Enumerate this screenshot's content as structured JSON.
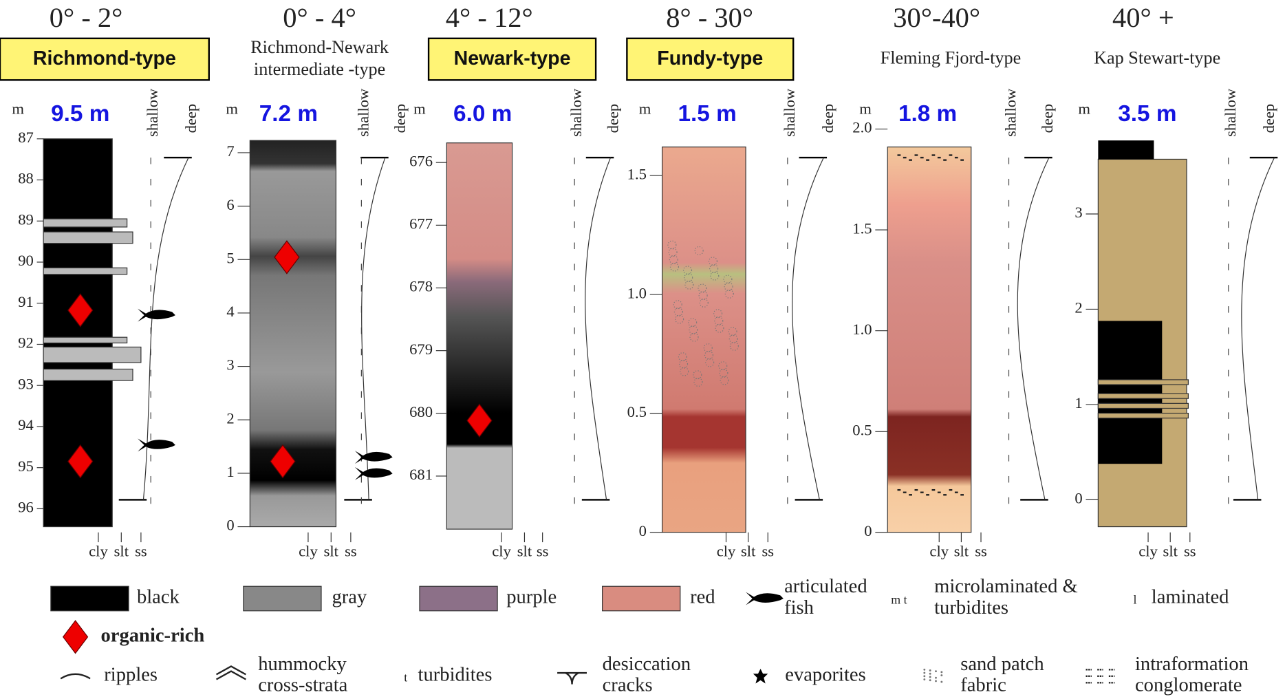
{
  "columns": [
    {
      "angle": "0° - 2°",
      "type": [
        "Richmond-type"
      ],
      "thickness": "9.5 m",
      "ticks": [
        "87",
        "88",
        "89",
        "90",
        "91",
        "92",
        "93",
        "94",
        "95",
        "96"
      ]
    },
    {
      "angle": "0° - 4°",
      "type": [
        "Richmond-Newark",
        "intermediate -type"
      ],
      "thickness": "7.2 m",
      "ticks": [
        "7",
        "6",
        "5",
        "4",
        "3",
        "2",
        "1",
        "0"
      ]
    },
    {
      "angle": "4° - 12°",
      "type": [
        "Newark-type"
      ],
      "thickness": "6.0 m",
      "ticks": [
        "676",
        "677",
        "678",
        "679",
        "680",
        "681"
      ]
    },
    {
      "angle": "8° - 30°",
      "type": [
        "Fundy-type"
      ],
      "thickness": "1.5 m",
      "ticks": [
        "1.5",
        "1.0",
        "0.5",
        "0"
      ]
    },
    {
      "angle": "30°-40°",
      "type": [
        "Fleming Fjord-type"
      ],
      "thickness": "1.8 m",
      "ticks": [
        "2.0",
        "1.5",
        "1.0",
        "0.5",
        "0"
      ]
    },
    {
      "angle": "40° +",
      "type": [
        "Kap Stewart-type"
      ],
      "thickness": "3.5 m",
      "ticks": [
        "3",
        "2",
        "1",
        "0"
      ]
    }
  ],
  "axis_labels": {
    "unit": "m",
    "shallow": "shallow",
    "deep": "deep",
    "grain": [
      "cly",
      "slt",
      "ss"
    ]
  },
  "legend": [
    {
      "lines": [
        "black"
      ]
    },
    {
      "lines": [
        "gray"
      ]
    },
    {
      "lines": [
        "purple"
      ]
    },
    {
      "lines": [
        "red"
      ]
    },
    {
      "lines": [
        "articulated",
        "fish"
      ]
    },
    {
      "symbol": "m t",
      "lines": [
        "microlaminated &",
        "turbidites"
      ]
    },
    {
      "symbol": "l",
      "lines": [
        "laminated"
      ]
    },
    {
      "lines": [
        "organic-rich"
      ]
    },
    {
      "lines": [
        "ripples"
      ]
    },
    {
      "lines": [
        "hummocky",
        "cross-strata"
      ]
    },
    {
      "symbol": "t",
      "lines": [
        "turbidites"
      ]
    },
    {
      "lines": [
        "desiccation",
        "cracks"
      ]
    },
    {
      "lines": [
        "evaporites"
      ]
    },
    {
      "lines": [
        "sand patch",
        "fabric"
      ]
    },
    {
      "lines": [
        "intraformation",
        "conglomerate"
      ]
    }
  ]
}
